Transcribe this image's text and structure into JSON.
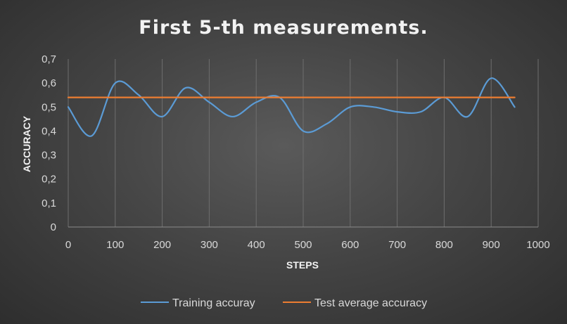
{
  "chart_data": {
    "type": "line",
    "title": "First 5-th measurements.",
    "xlabel": "STEPS",
    "ylabel": "ACCURACY",
    "xlim": [
      0,
      1000
    ],
    "ylim": [
      0,
      0.7
    ],
    "x_ticks": [
      "0",
      "100",
      "200",
      "300",
      "400",
      "500",
      "600",
      "700",
      "800",
      "900",
      "1000"
    ],
    "x_tick_values": [
      0,
      100,
      200,
      300,
      400,
      500,
      600,
      700,
      800,
      900,
      1000
    ],
    "y_ticks": [
      "0",
      "0,1",
      "0,2",
      "0,3",
      "0,4",
      "0,5",
      "0,6",
      "0,7"
    ],
    "y_tick_values": [
      0,
      0.1,
      0.2,
      0.3,
      0.4,
      0.5,
      0.6,
      0.7
    ],
    "grid": "vertical",
    "legend_position": "bottom",
    "series": [
      {
        "name": "Training accuray",
        "color": "#5b9bd5",
        "smooth": true,
        "x": [
          0,
          50,
          100,
          150,
          200,
          250,
          300,
          350,
          400,
          450,
          500,
          550,
          600,
          650,
          700,
          750,
          800,
          850,
          900,
          950
        ],
        "values": [
          0.5,
          0.38,
          0.6,
          0.55,
          0.46,
          0.58,
          0.52,
          0.46,
          0.52,
          0.54,
          0.4,
          0.43,
          0.5,
          0.5,
          0.48,
          0.48,
          0.54,
          0.46,
          0.62,
          0.5
        ]
      },
      {
        "name": "Test average accuracy",
        "color": "#ed7d31",
        "smooth": false,
        "x": [
          0,
          950
        ],
        "values": [
          0.54,
          0.54
        ]
      }
    ]
  }
}
